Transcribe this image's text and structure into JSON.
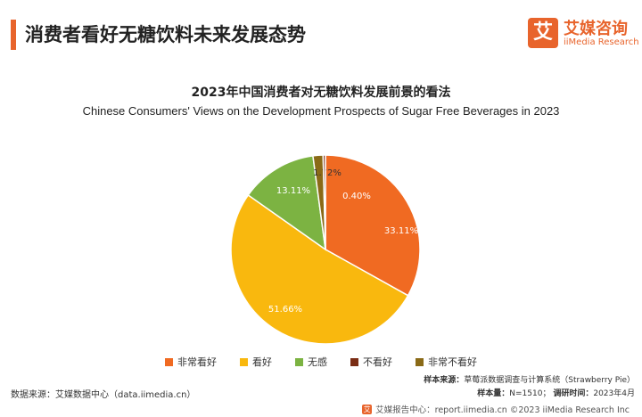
{
  "header": {
    "title": "消费者看好无糖饮料未来发展态势"
  },
  "logo": {
    "mark": "艾",
    "name_cn": "艾媒咨询",
    "name_en": "iiMedia Research"
  },
  "chart_data": {
    "type": "pie",
    "title": "2023年中国消费者对无糖饮料发展前景的看法",
    "subtitle": "Chinese Consumers' Views on the Development Prospects of Sugar Free Beverages in 2023",
    "categories": [
      "非常看好",
      "看好",
      "无感",
      "不看好",
      "非常不看好"
    ],
    "values": [
      33.11,
      51.66,
      13.11,
      0.4,
      1.72
    ],
    "value_labels": [
      "33.11%",
      "51.66%",
      "13.11%",
      "0.40%",
      "1.72%"
    ],
    "colors": [
      "#f06a22",
      "#f9b80e",
      "#7cb342",
      "#7a2d14",
      "#8a6a17"
    ],
    "legend_position": "bottom"
  },
  "notes": {
    "sample_source_label": "样本来源：",
    "sample_source": "草莓派数据调查与计算系统（Strawberry Pie）",
    "sample_size_label": "样本量：",
    "sample_size": "N=1510；",
    "survey_time_label": "调研时间：",
    "survey_time": "2023年4月"
  },
  "source": "数据来源：艾媒数据中心（data.iimedia.cn）",
  "footer": {
    "text": "艾媒报告中心：report.iimedia.cn  ©2023  iiMedia Research Inc"
  }
}
